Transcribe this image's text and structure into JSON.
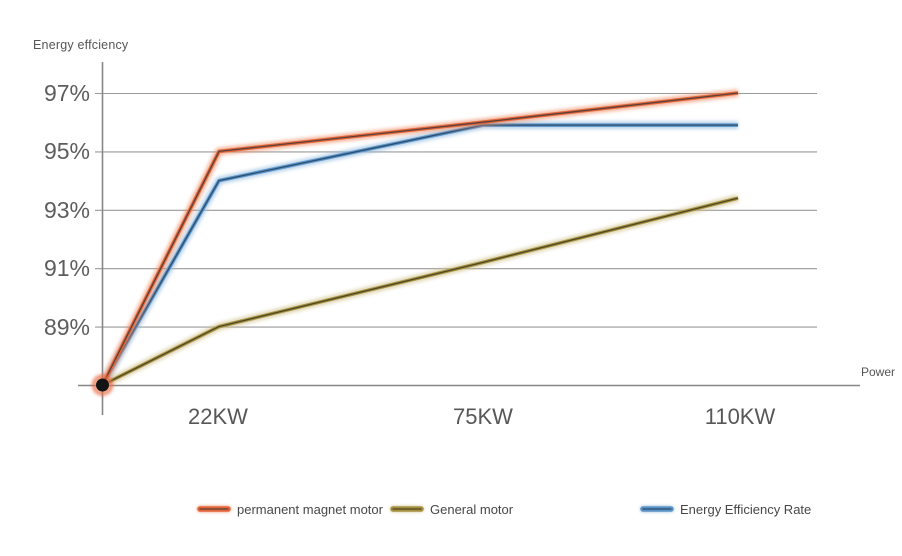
{
  "y_axis_title": "Energy effciency",
  "x_axis_title": "Power",
  "chart_data": {
    "type": "line",
    "title": "",
    "xlabel": "Power",
    "ylabel": "Energy effciency",
    "categories": [
      "22KW",
      "75KW",
      "110KW"
    ],
    "yticks": [
      "97%",
      "95%",
      "93%",
      "91%",
      "89%"
    ],
    "ytick_values": [
      97,
      95,
      93,
      91,
      89
    ],
    "ylim": [
      86.8,
      97.5
    ],
    "origin_value": 87,
    "grid": true,
    "legend_position": "bottom",
    "series": [
      {
        "name": "permanent magnet motor",
        "color": "#e2663a",
        "glow": "#f0885f",
        "core": "#5d4037",
        "values": [
          95,
          96,
          97
        ]
      },
      {
        "name": "General motor",
        "color": "#a59141",
        "glow": "#cfc08a",
        "core": "#4f4722",
        "values": [
          89,
          91.2,
          93.4
        ]
      },
      {
        "name": "Energy Efficiency Rate",
        "color": "#5b93c7",
        "glow": "#8fb9de",
        "core": "#2a4f70",
        "values": [
          94,
          95.9,
          95.9
        ]
      }
    ],
    "origin_point_color": "#141414",
    "origin_glow_color": "#e8683c",
    "grid_color": "#9a9a9a",
    "axis_color": "#878787"
  }
}
